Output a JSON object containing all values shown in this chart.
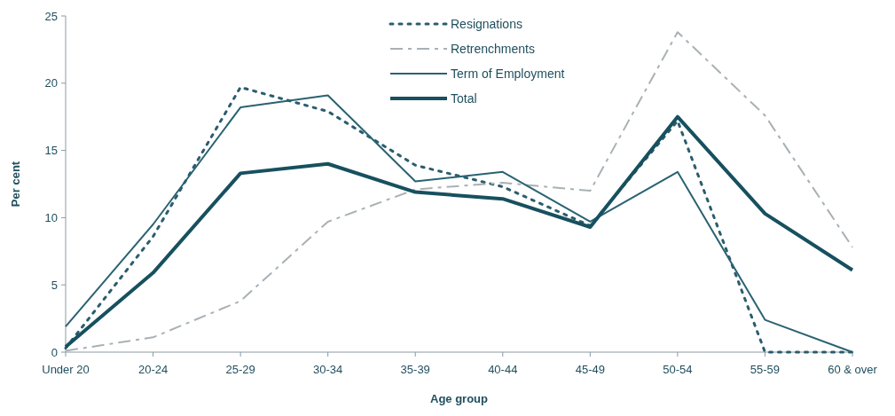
{
  "chart_data": {
    "type": "line",
    "xlabel": "Age group",
    "ylabel": "Per cent",
    "categories": [
      "Under 20",
      "20-24",
      "25-29",
      "30-34",
      "35-39",
      "40-44",
      "45-49",
      "50-54",
      "55-59",
      "60 & over"
    ],
    "ylim": [
      0,
      25
    ],
    "yticks": [
      0,
      5,
      10,
      15,
      20,
      25
    ],
    "grid": false,
    "legend": "top",
    "marker": "none",
    "series": [
      {
        "name": "Resignations",
        "color": "#2a5d6e",
        "line_style": "dotted",
        "values": [
          0.3,
          8.6,
          19.7,
          17.9,
          13.9,
          12.3,
          9.4,
          17.2,
          0,
          0
        ]
      },
      {
        "name": "Retrenchments",
        "color": "#a9b1b5",
        "line_style": "dashed",
        "values": [
          0.1,
          1.1,
          3.8,
          9.7,
          12.1,
          12.6,
          12.0,
          23.8,
          17.6,
          7.8
        ]
      },
      {
        "name": "Term of Employment",
        "color": "#2a6272",
        "line_style": "solid",
        "values": [
          1.9,
          9.5,
          18.2,
          19.1,
          12.7,
          13.4,
          9.7,
          13.4,
          2.4,
          0
        ]
      },
      {
        "name": "Total",
        "color": "#17505f",
        "line_style": "solid",
        "values": [
          0.4,
          5.9,
          13.3,
          14.0,
          11.9,
          11.4,
          9.3,
          17.5,
          10.3,
          6.1
        ]
      }
    ]
  }
}
